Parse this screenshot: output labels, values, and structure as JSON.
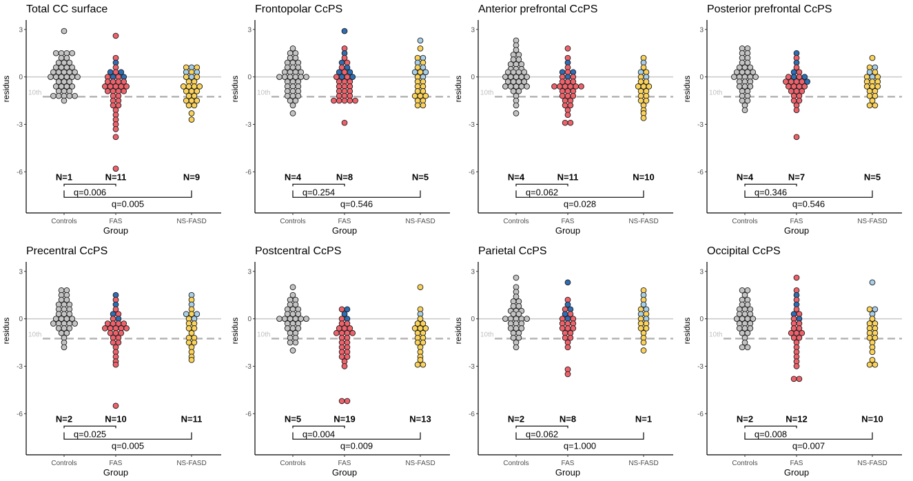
{
  "figure": {
    "groups": [
      "Controls",
      "FAS",
      "NS-FASD"
    ],
    "xlabel": "Group",
    "ylabel": "residus",
    "yticks": [
      -6,
      -3,
      0,
      3
    ],
    "ylim": [
      -8.6,
      3.6
    ],
    "threshold": {
      "label": "10th",
      "value": -1.25
    },
    "colors": {
      "controls": "#c4c4c4",
      "fas_red": "#f0626b",
      "fas_blue": "#2f6db4",
      "ns_gold": "#fcd35a",
      "ns_lightblue": "#a9cfe8",
      "zero_line": "#c8c8c8",
      "threshold_line": "#b8b8b8"
    }
  },
  "chart_data": [
    {
      "type": "beeswarm",
      "title": "Total CC surface",
      "n_labels": [
        "N=1",
        "N=11",
        "N=9"
      ],
      "comparisons": [
        {
          "pair": [
            "Controls",
            "FAS"
          ],
          "label": "q=0.006"
        },
        {
          "pair": [
            "Controls",
            "NS-FASD"
          ],
          "label": "q=0.005"
        }
      ],
      "series": [
        {
          "group": "Controls",
          "colors": [
            "controls"
          ],
          "values": [
            2.9,
            1.5,
            1.5,
            1.5,
            1.5,
            1.2,
            1.2,
            0.9,
            0.9,
            0.9,
            0.6,
            0.6,
            0.6,
            0.6,
            0.3,
            0.3,
            0.3,
            0.3,
            0.3,
            0,
            0,
            0,
            0,
            0,
            0,
            -0.3,
            -0.3,
            -0.3,
            -0.6,
            -0.6,
            -0.6,
            -0.6,
            -0.9,
            -0.9,
            -0.9,
            -1.2,
            -1.2,
            -1.2,
            -1.2,
            -1.2,
            -1.5
          ]
        },
        {
          "group": "FAS",
          "colors": [
            "fas_red",
            "fas_blue"
          ],
          "values": [
            2.6,
            1.2,
            0.9,
            0.6,
            0.3,
            0.3,
            0.3,
            0,
            0,
            0,
            0,
            -0.3,
            -0.3,
            -0.3,
            -0.3,
            -0.6,
            -0.6,
            -0.6,
            -0.6,
            -0.6,
            -0.9,
            -0.9,
            -0.9,
            -0.9,
            -1.2,
            -1.2,
            -1.5,
            -1.5,
            -1.8,
            -1.8,
            -2.1,
            -2.4,
            -2.7,
            -3.0,
            -3.3,
            -3.8,
            -5.8
          ]
        },
        {
          "group": "NS-FASD",
          "colors": [
            "ns_gold",
            "ns_lightblue"
          ],
          "values": [
            0.6,
            0.6,
            0.6,
            0.3,
            0.3,
            0.3,
            0,
            0,
            0,
            -0.3,
            -0.3,
            -0.6,
            -0.6,
            -0.6,
            -0.6,
            -0.9,
            -0.9,
            -0.9,
            -1.2,
            -1.2,
            -1.5,
            -1.5,
            -1.5,
            -1.8,
            -1.8,
            -2.3,
            -2.7
          ]
        }
      ]
    },
    {
      "type": "beeswarm",
      "title": "Frontopolar CcPS",
      "n_labels": [
        "N=4",
        "N=8",
        "N=5"
      ],
      "comparisons": [
        {
          "pair": [
            "Controls",
            "FAS"
          ],
          "label": "q=0.254"
        },
        {
          "pair": [
            "Controls",
            "NS-FASD"
          ],
          "label": "q=0.546"
        }
      ],
      "series": [
        {
          "group": "Controls",
          "colors": [
            "controls"
          ],
          "values": [
            1.8,
            1.5,
            1.5,
            1.2,
            1.2,
            0.9,
            0.9,
            0.9,
            0.6,
            0.6,
            0.6,
            0.3,
            0.3,
            0.3,
            0.3,
            0,
            0,
            0,
            0,
            0,
            0,
            -0.3,
            -0.3,
            -0.3,
            -0.6,
            -0.6,
            -0.6,
            -0.9,
            -0.9,
            -0.9,
            -1.2,
            -1.2,
            -1.2,
            -1.5,
            -1.5,
            -1.8,
            -2.3
          ]
        },
        {
          "group": "FAS",
          "colors": [
            "fas_red",
            "fas_blue"
          ],
          "values": [
            2.9,
            1.8,
            1.5,
            1.2,
            0.9,
            0.9,
            0.6,
            0.6,
            0.3,
            0.3,
            0.3,
            0,
            0,
            0,
            0,
            -0.3,
            -0.3,
            -0.3,
            -0.6,
            -0.6,
            -0.6,
            -0.9,
            -0.9,
            -0.9,
            -1.2,
            -1.2,
            -1.2,
            -1.5,
            -1.5,
            -1.5,
            -1.5,
            -1.5,
            -2.9
          ]
        },
        {
          "group": "NS-FASD",
          "colors": [
            "ns_gold",
            "ns_lightblue"
          ],
          "values": [
            2.3,
            1.8,
            1.2,
            1.2,
            0.9,
            0.9,
            0.6,
            0.6,
            0.3,
            0.3,
            0.3,
            0,
            0,
            -0.3,
            -0.3,
            -0.6,
            -0.6,
            -0.9,
            -0.9,
            -1.2,
            -1.2,
            -1.2,
            -1.5,
            -1.5,
            -1.8,
            -1.8
          ]
        }
      ]
    },
    {
      "type": "beeswarm",
      "title": "Anterior prefrontal CcPS",
      "n_labels": [
        "N=4",
        "N=11",
        "N=10"
      ],
      "comparisons": [
        {
          "pair": [
            "Controls",
            "FAS"
          ],
          "label": "q=0.062"
        },
        {
          "pair": [
            "Controls",
            "NS-FASD"
          ],
          "label": "q=0.028"
        }
      ],
      "series": [
        {
          "group": "Controls",
          "colors": [
            "controls"
          ],
          "values": [
            2.3,
            2.0,
            1.7,
            1.4,
            1.4,
            1.1,
            1.1,
            0.8,
            0.8,
            0.8,
            0.5,
            0.5,
            0.5,
            0.3,
            0.3,
            0.3,
            0.3,
            0,
            0,
            0,
            0,
            0,
            -0.3,
            -0.3,
            -0.3,
            -0.3,
            -0.6,
            -0.6,
            -0.6,
            -0.6,
            -0.6,
            -0.9,
            -0.9,
            -1.2,
            -1.5,
            -1.8,
            -2.3
          ]
        },
        {
          "group": "FAS",
          "colors": [
            "fas_red",
            "fas_blue"
          ],
          "values": [
            1.8,
            1.2,
            0.9,
            0.6,
            0.3,
            0.3,
            0.3,
            0,
            0,
            0,
            -0.3,
            -0.3,
            -0.3,
            -0.6,
            -0.6,
            -0.6,
            -0.6,
            -0.6,
            -0.6,
            -0.9,
            -0.9,
            -0.9,
            -1.2,
            -1.2,
            -1.2,
            -1.5,
            -1.5,
            -1.8,
            -1.8,
            -2.1,
            -2.4,
            -2.9,
            -2.9
          ]
        },
        {
          "group": "NS-FASD",
          "colors": [
            "ns_gold",
            "ns_lightblue"
          ],
          "values": [
            1.2,
            0.9,
            0.6,
            0.3,
            0.3,
            0,
            0,
            -0.3,
            -0.3,
            -0.6,
            -0.6,
            -0.6,
            -0.9,
            -0.9,
            -1.2,
            -1.2,
            -1.5,
            -1.5,
            -1.8,
            -2.1,
            -2.3,
            -2.6
          ]
        }
      ]
    },
    {
      "type": "beeswarm",
      "title": "Posterior prefrontal CcPS",
      "n_labels": [
        "N=4",
        "N=7",
        "N=5"
      ],
      "comparisons": [
        {
          "pair": [
            "Controls",
            "FAS"
          ],
          "label": "q=0.346"
        },
        {
          "pair": [
            "Controls",
            "NS-FASD"
          ],
          "label": "q=0.546"
        }
      ],
      "series": [
        {
          "group": "Controls",
          "colors": [
            "controls"
          ],
          "values": [
            1.8,
            1.8,
            1.5,
            1.5,
            1.2,
            1.2,
            0.9,
            0.9,
            0.6,
            0.6,
            0.6,
            0.3,
            0.3,
            0.3,
            0.3,
            0,
            0,
            0,
            0,
            0,
            -0.3,
            -0.3,
            -0.3,
            -0.6,
            -0.6,
            -0.6,
            -0.9,
            -0.9,
            -1.2,
            -1.2,
            -1.5,
            -1.5,
            -1.8,
            -2.1
          ]
        },
        {
          "group": "FAS",
          "colors": [
            "fas_red",
            "fas_blue"
          ],
          "values": [
            1.5,
            1.2,
            0.9,
            0.6,
            0.3,
            0.3,
            0,
            0,
            0,
            0,
            -0.3,
            -0.3,
            -0.3,
            -0.3,
            -0.3,
            -0.6,
            -0.6,
            -0.6,
            -0.6,
            -0.9,
            -0.9,
            -0.9,
            -1.2,
            -1.2,
            -1.5,
            -1.5,
            -1.8,
            -2.1,
            -3.8
          ]
        },
        {
          "group": "NS-FASD",
          "colors": [
            "ns_gold",
            "ns_lightblue"
          ],
          "values": [
            1.2,
            0.6,
            0.6,
            0.3,
            0.3,
            0,
            0,
            0,
            -0.3,
            -0.3,
            -0.3,
            -0.6,
            -0.6,
            -0.6,
            -0.9,
            -0.9,
            -1.2,
            -1.2,
            -1.5,
            -1.8,
            -1.8
          ]
        }
      ]
    },
    {
      "type": "beeswarm",
      "title": "Precentral CcPS",
      "n_labels": [
        "N=2",
        "N=10",
        "N=11"
      ],
      "comparisons": [
        {
          "pair": [
            "Controls",
            "FAS"
          ],
          "label": "q=0.025"
        },
        {
          "pair": [
            "Controls",
            "NS-FASD"
          ],
          "label": "q=0.005"
        }
      ],
      "series": [
        {
          "group": "Controls",
          "colors": [
            "controls"
          ],
          "values": [
            1.8,
            1.8,
            1.5,
            1.5,
            1.2,
            1.2,
            0.9,
            0.9,
            0.9,
            0.6,
            0.6,
            0.6,
            0.3,
            0.3,
            0.3,
            0,
            0,
            0,
            0,
            -0.3,
            -0.3,
            -0.3,
            -0.3,
            -0.3,
            -0.6,
            -0.6,
            -0.6,
            -0.9,
            -0.9,
            -1.2,
            -1.5,
            -1.8
          ]
        },
        {
          "group": "FAS",
          "colors": [
            "fas_red",
            "fas_blue"
          ],
          "values": [
            1.5,
            1.2,
            0.9,
            0.6,
            0.3,
            0.3,
            0,
            0,
            -0.3,
            -0.3,
            -0.3,
            -0.3,
            -0.6,
            -0.6,
            -0.6,
            -0.6,
            -0.6,
            -0.9,
            -0.9,
            -0.9,
            -1.2,
            -1.2,
            -1.5,
            -1.5,
            -1.8,
            -2.1,
            -2.4,
            -2.7,
            -2.9,
            -5.5
          ]
        },
        {
          "group": "NS-FASD",
          "colors": [
            "ns_gold",
            "ns_lightblue"
          ],
          "values": [
            1.5,
            1.2,
            0.9,
            0.6,
            0.3,
            0.3,
            0.3,
            0,
            0,
            -0.3,
            -0.3,
            -0.6,
            -0.6,
            -0.9,
            -1.2,
            -1.2,
            -1.5,
            -1.5,
            -1.8,
            -2.1,
            -2.4,
            -2.6
          ]
        }
      ]
    },
    {
      "type": "beeswarm",
      "title": "Postcentral CcPS",
      "n_labels": [
        "N=5",
        "N=19",
        "N=13"
      ],
      "comparisons": [
        {
          "pair": [
            "Controls",
            "FAS"
          ],
          "label": "q=0.004"
        },
        {
          "pair": [
            "Controls",
            "NS-FASD"
          ],
          "label": "q=0.009"
        }
      ],
      "series": [
        {
          "group": "Controls",
          "colors": [
            "controls"
          ],
          "values": [
            2.0,
            1.5,
            1.2,
            1.2,
            0.9,
            0.9,
            0.6,
            0.6,
            0.6,
            0.3,
            0.3,
            0.3,
            0,
            0,
            0,
            0,
            0,
            0,
            -0.3,
            -0.3,
            -0.3,
            -0.6,
            -0.6,
            -0.6,
            -0.9,
            -0.9,
            -1.2,
            -1.2,
            -1.5,
            -1.5,
            -2.0
          ]
        },
        {
          "group": "FAS",
          "colors": [
            "fas_red",
            "fas_blue"
          ],
          "values": [
            0.6,
            0.6,
            0.3,
            0,
            0,
            -0.3,
            -0.3,
            -0.6,
            -0.6,
            -0.6,
            -0.9,
            -0.9,
            -0.9,
            -0.9,
            -1.2,
            -1.2,
            -1.5,
            -1.5,
            -1.8,
            -1.8,
            -2.1,
            -2.1,
            -2.4,
            -2.4,
            -2.7,
            -3.0,
            -5.2,
            -5.2
          ]
        },
        {
          "group": "NS-FASD",
          "colors": [
            "ns_gold",
            "ns_lightblue"
          ],
          "values": [
            2.0,
            0.6,
            0.3,
            0,
            -0.3,
            -0.3,
            -0.6,
            -0.6,
            -0.6,
            -0.9,
            -0.9,
            -1.2,
            -1.2,
            -1.5,
            -1.5,
            -1.8,
            -2.1,
            -2.4,
            -2.6,
            -2.9,
            -2.9
          ]
        }
      ]
    },
    {
      "type": "beeswarm",
      "title": "Parietal CcPS",
      "n_labels": [
        "N=2",
        "N=8",
        "N=1"
      ],
      "comparisons": [
        {
          "pair": [
            "Controls",
            "FAS"
          ],
          "label": "q=0.062"
        },
        {
          "pair": [
            "Controls",
            "NS-FASD"
          ],
          "label": "q=1.000"
        }
      ],
      "series": [
        {
          "group": "Controls",
          "colors": [
            "controls"
          ],
          "values": [
            2.6,
            2.0,
            1.7,
            1.4,
            1.1,
            1.1,
            0.8,
            0.8,
            0.5,
            0.5,
            0.5,
            0.3,
            0.3,
            0,
            0,
            0,
            0,
            0,
            -0.3,
            -0.3,
            -0.3,
            -0.6,
            -0.6,
            -0.6,
            -0.9,
            -0.9,
            -1.2,
            -1.2,
            -1.5,
            -1.8
          ]
        },
        {
          "group": "FAS",
          "colors": [
            "fas_red",
            "fas_blue"
          ],
          "values": [
            2.3,
            1.2,
            0.9,
            0.6,
            0.6,
            0.3,
            0.3,
            0,
            0,
            0,
            -0.3,
            -0.3,
            -0.3,
            -0.6,
            -0.6,
            -0.6,
            -0.9,
            -0.9,
            -1.2,
            -1.2,
            -1.5,
            -1.8,
            -3.2,
            -3.5
          ]
        },
        {
          "group": "NS-FASD",
          "colors": [
            "ns_gold",
            "ns_lightblue"
          ],
          "values": [
            1.8,
            1.5,
            1.2,
            0.9,
            0.6,
            0.6,
            0.3,
            0.3,
            0,
            0,
            -0.3,
            -0.3,
            -0.6,
            -0.6,
            -0.9,
            -1.2,
            -1.5,
            -2.0
          ]
        }
      ]
    },
    {
      "type": "beeswarm",
      "title": "Occipital CcPS",
      "n_labels": [
        "N=2",
        "N=12",
        "N=10"
      ],
      "comparisons": [
        {
          "pair": [
            "Controls",
            "FAS"
          ],
          "label": "q=0.008"
        },
        {
          "pair": [
            "Controls",
            "NS-FASD"
          ],
          "label": "q=0.007"
        }
      ],
      "series": [
        {
          "group": "Controls",
          "colors": [
            "controls"
          ],
          "values": [
            1.8,
            1.8,
            1.5,
            1.2,
            1.2,
            0.9,
            0.9,
            0.6,
            0.6,
            0.6,
            0.3,
            0.3,
            0.3,
            0,
            0,
            0,
            0,
            -0.3,
            -0.3,
            -0.3,
            -0.6,
            -0.6,
            -0.6,
            -0.9,
            -0.9,
            -1.2,
            -1.5,
            -1.8,
            -1.8
          ]
        },
        {
          "group": "FAS",
          "colors": [
            "fas_red",
            "fas_blue"
          ],
          "values": [
            2.6,
            1.8,
            1.5,
            1.2,
            0.9,
            0.6,
            0.3,
            0.3,
            0,
            0,
            -0.3,
            -0.3,
            -0.6,
            -0.6,
            -0.9,
            -0.9,
            -0.9,
            -1.2,
            -1.2,
            -1.5,
            -1.8,
            -2.1,
            -2.4,
            -2.7,
            -3.0,
            -3.8,
            -3.8
          ]
        },
        {
          "group": "NS-FASD",
          "colors": [
            "ns_gold",
            "ns_lightblue"
          ],
          "values": [
            2.3,
            0.6,
            0.6,
            0.3,
            0,
            -0.3,
            -0.3,
            -0.6,
            -0.6,
            -0.9,
            -0.9,
            -1.2,
            -1.2,
            -1.5,
            -1.8,
            -2.1,
            -2.6,
            -2.9,
            -2.9
          ]
        }
      ]
    }
  ]
}
